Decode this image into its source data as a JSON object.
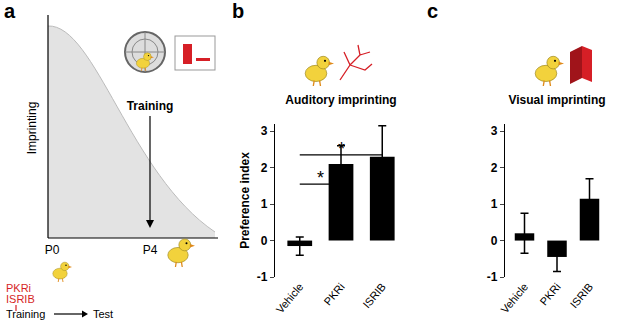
{
  "diagram": {
    "panel_label": "a",
    "y_label": "Imprinting",
    "training_label": "Training",
    "x_labels": [
      "P0",
      "P4"
    ],
    "drugs": [
      "PKRi",
      "ISRIB"
    ],
    "timeline": [
      "Training",
      "Test"
    ]
  },
  "chart_data": [
    {
      "panel_label": "b",
      "type": "bar",
      "title": "Auditory imprinting",
      "y_label": "Preference index",
      "categories": [
        "Vehicle",
        "PKRi",
        "ISRIB"
      ],
      "values": [
        -0.15,
        2.1,
        2.3
      ],
      "errors": [
        0.25,
        0.5,
        0.85
      ],
      "color": "#000000",
      "ylim": [
        -1,
        3.2
      ],
      "yticks": [
        -1,
        0,
        1,
        2,
        3
      ],
      "grid": false,
      "significance": [
        {
          "from": "Vehicle",
          "to": "PKRi",
          "y": 1.55,
          "label": "*"
        },
        {
          "from": "Vehicle",
          "to": "ISRIB",
          "y": 2.35,
          "label": "*"
        }
      ]
    },
    {
      "panel_label": "c",
      "type": "bar",
      "title": "Visual imprinting",
      "categories": [
        "Vehicle",
        "PKRi",
        "ISRIB"
      ],
      "values": [
        0.2,
        -0.45,
        1.15
      ],
      "errors": [
        0.55,
        0.4,
        0.55
      ],
      "color": "#000000",
      "ylim": [
        -1,
        3.2
      ],
      "yticks": [
        -1,
        0,
        1,
        2,
        3
      ],
      "grid": false
    }
  ]
}
